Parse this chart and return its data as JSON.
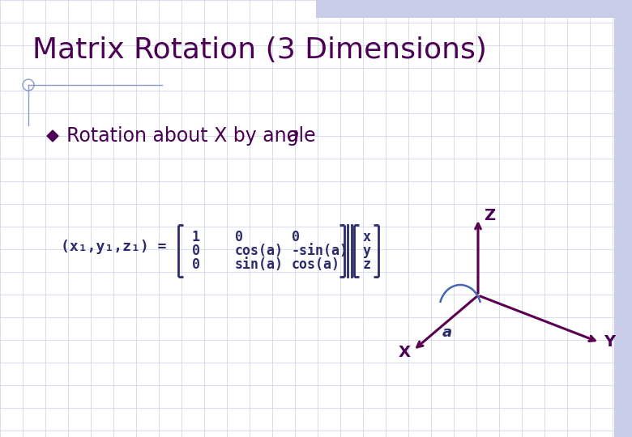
{
  "title": "Matrix Rotation (3 Dimensions)",
  "title_color": "#4B0055",
  "title_fontsize": 26,
  "bg_color": "#FFFFFF",
  "grid_color": "#C8D0E8",
  "bullet_text": "Rotation about X by angle ",
  "bullet_italic": "a",
  "bullet_color": "#4B0055",
  "bullet_fontsize": 17,
  "matrix_label": "(x₁,y₁,z₁) =",
  "matrix_color": "#2B2B6B",
  "matrix_rows": [
    [
      "1",
      "0",
      "0"
    ],
    [
      "0",
      "cos(a)",
      "-sin(a)"
    ],
    [
      "0",
      "sin(a)",
      "cos(a)"
    ]
  ],
  "vector_rows": [
    "x",
    "y",
    "z"
  ],
  "axis_color": "#5A0050",
  "axis_label_color": "#4B0055",
  "header_bar_color": "#C8CCE8",
  "side_bar_color": "#C8CCE8",
  "arc_color": "#4466AA",
  "diamond_color": "#4B0055",
  "slide_line_color": "#8899CC"
}
